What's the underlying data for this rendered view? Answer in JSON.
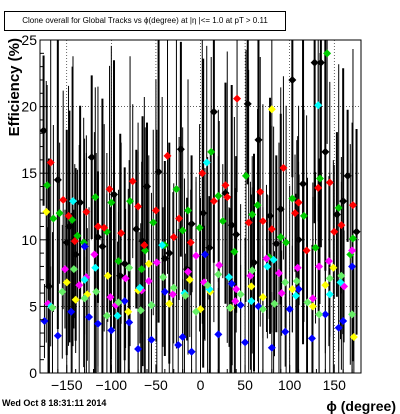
{
  "chart_data": {
    "type": "scatter",
    "title": "Clone  overall for Global Tracks vs ϕ(degree) at |η |<= 1.0 at pT > 0.11",
    "xlabel": "ϕ (degree)",
    "ylabel": "Efficiency (%)",
    "xlim": [
      -180,
      180
    ],
    "ylim": [
      0,
      25
    ],
    "xticks": [
      "−150",
      "−100",
      "−50",
      "0",
      "50",
      "100",
      "150"
    ],
    "yticks": [
      "0",
      "5",
      "10",
      "15",
      "20",
      "25"
    ],
    "grid": "dotted",
    "series": [
      {
        "color": "#000000",
        "x": [
          -176,
          -160,
          -147,
          -135,
          -122,
          -110,
          -97,
          -85,
          -72,
          -60,
          -47,
          -35,
          -22,
          -10,
          3,
          15,
          28,
          40,
          53,
          65,
          78,
          90,
          103,
          115,
          128,
          140,
          153,
          165,
          -170,
          -150,
          -140,
          -115,
          -90,
          -65,
          -40,
          -15,
          10,
          35,
          60,
          85,
          110,
          135,
          160,
          175
        ],
        "y": [
          18.2,
          14.5,
          11.0,
          12.8,
          16.2,
          9.5,
          13.4,
          8.2,
          10.8,
          14.0,
          15.1,
          9.0,
          16.8,
          11.2,
          12.0,
          19.6,
          13.5,
          10.4,
          20.2,
          17.5,
          11.8,
          12.3,
          22.0,
          14.2,
          23.3,
          16.6,
          11.9,
          14.8,
          6.5,
          9.8,
          8.9,
          10.2,
          7.3,
          9.9,
          8.6,
          7.8,
          9.4,
          11.1,
          8.3,
          9.7,
          10.0,
          23.3,
          12.9,
          10.6
        ]
      },
      {
        "color": "#00cc00",
        "x": [
          -172,
          -158,
          -144,
          -131,
          -118,
          -105,
          -92,
          -79,
          -66,
          -53,
          -40,
          -27,
          -14,
          -1,
          12,
          25,
          38,
          51,
          64,
          77,
          90,
          103,
          116,
          129,
          142,
          155,
          168,
          -165,
          -138,
          -100,
          -62,
          -20,
          20,
          58,
          96,
          134,
          171
        ],
        "y": [
          14.1,
          12.0,
          11.5,
          9.8,
          13.2,
          10.6,
          8.4,
          12.9,
          7.8,
          11.3,
          9.6,
          13.8,
          12.2,
          10.9,
          16.6,
          11.4,
          9.1,
          14.8,
          12.6,
          8.7,
          10.2,
          13.1,
          11.8,
          9.4,
          24.0,
          12.4,
          8.9,
          11.6,
          10.3,
          12.8,
          9.2,
          10.7,
          13.3,
          11.9,
          9.8,
          14.6,
          10.1
        ]
      },
      {
        "color": "#ff0000",
        "x": [
          -168,
          -154,
          -141,
          -128,
          -115,
          -102,
          -89,
          -76,
          -63,
          -50,
          -37,
          -24,
          -11,
          2,
          15,
          28,
          41,
          54,
          67,
          80,
          93,
          106,
          119,
          132,
          145,
          158,
          171,
          -148,
          -108,
          -70,
          -30,
          30,
          70,
          110,
          150
        ],
        "y": [
          15.8,
          13.0,
          9.9,
          12.1,
          11.0,
          13.8,
          10.5,
          14.4,
          9.6,
          12.2,
          16.3,
          11.6,
          9.8,
          15.0,
          12.9,
          14.1,
          20.6,
          11.3,
          13.6,
          10.8,
          15.4,
          12.0,
          9.2,
          13.9,
          14.3,
          11.1,
          12.6,
          11.8,
          10.9,
          12.5,
          10.2,
          13.2,
          11.4,
          12.8,
          10.6
        ]
      },
      {
        "color": "#0000ff",
        "x": [
          -175,
          -160,
          -145,
          -130,
          -115,
          -100,
          -85,
          -70,
          -55,
          -40,
          -25,
          -10,
          5,
          20,
          35,
          50,
          65,
          80,
          95,
          110,
          125,
          140,
          155,
          170,
          -125,
          -80,
          -20,
          45,
          100,
          160
        ],
        "y": [
          3.9,
          2.8,
          4.6,
          9.5,
          3.7,
          3.2,
          5.4,
          1.8,
          2.5,
          6.1,
          2.1,
          1.6,
          8.9,
          2.9,
          6.7,
          2.3,
          5.0,
          1.9,
          3.1,
          6.3,
          2.6,
          4.4,
          3.4,
          8.0,
          4.2,
          3.8,
          2.7,
          5.1,
          4.8,
          3.9
        ]
      },
      {
        "color": "#ff00ff",
        "x": [
          -171,
          -152,
          -136,
          -119,
          -101,
          -84,
          -66,
          -49,
          -31,
          -14,
          4,
          21,
          39,
          56,
          74,
          91,
          109,
          126,
          144,
          161,
          -128,
          -95,
          -58,
          -5,
          40,
          88,
          133,
          170
        ],
        "y": [
          5.2,
          7.8,
          6.6,
          8.9,
          5.7,
          7.1,
          6.2,
          8.3,
          5.9,
          7.6,
          6.8,
          8.1,
          5.4,
          7.3,
          8.6,
          6.0,
          7.9,
          5.6,
          8.4,
          6.5,
          7.2,
          5.1,
          6.9,
          8.8,
          6.3,
          7.5,
          8.0,
          9.2
        ]
      },
      {
        "color": "#ffff00",
        "x": [
          -173,
          -150,
          -127,
          -104,
          -81,
          -58,
          -35,
          -12,
          11,
          34,
          57,
          80,
          103,
          126,
          149,
          172,
          -140,
          -70,
          0,
          70,
          140
        ],
        "y": [
          12.1,
          6.8,
          5.9,
          7.3,
          4.6,
          8.2,
          5.2,
          7.0,
          6.1,
          4.9,
          6.5,
          19.8,
          6.3,
          5.0,
          7.9,
          2.7,
          5.5,
          6.2,
          4.8,
          5.7,
          6.6
        ]
      },
      {
        "color": "#00ffff",
        "x": [
          -168,
          -143,
          -118,
          -93,
          -68,
          -43,
          -18,
          7,
          32,
          57,
          82,
          107,
          132,
          157,
          -130,
          -55,
          10,
          75,
          145
        ],
        "y": [
          5.0,
          12.9,
          7.9,
          4.3,
          6.4,
          9.6,
          6.0,
          15.8,
          7.2,
          5.4,
          8.5,
          5.8,
          20.1,
          6.8,
          7.0,
          5.1,
          6.3,
          8.0,
          5.9
        ]
      },
      {
        "color": "#66ee66",
        "x": [
          -166,
          -142,
          -117,
          -92,
          -67,
          -42,
          -17,
          8,
          33,
          58,
          83,
          108,
          133,
          158,
          -155,
          -130,
          -105,
          -80,
          -55,
          -30,
          -5,
          20,
          45,
          70,
          95,
          120,
          145,
          170
        ],
        "y": [
          4.9,
          7.8,
          6.1,
          5.3,
          4.7,
          7.2,
          5.8,
          6.6,
          4.9,
          7.7,
          5.2,
          6.9,
          4.4,
          7.3,
          6.1,
          5.6,
          4.3,
          7.9,
          5.1,
          6.4,
          4.6,
          7.4,
          5.9,
          4.8,
          6.8,
          5.3,
          7.1,
          4.4
        ]
      }
    ]
  }
}
